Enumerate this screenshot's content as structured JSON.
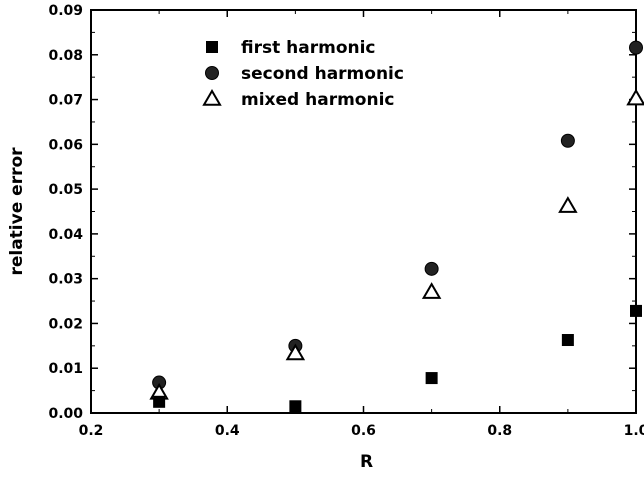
{
  "chart_data": {
    "type": "scatter",
    "title": "",
    "xlabel": "R",
    "ylabel": "relative error",
    "xlim": [
      0.2,
      1.0
    ],
    "ylim": [
      0.0,
      0.09
    ],
    "x_ticks": [
      0.2,
      0.4,
      0.6,
      0.8,
      1.0
    ],
    "x_tick_labels": [
      "0.2",
      "0.4",
      "0.6",
      "0.8",
      "1.0"
    ],
    "y_ticks": [
      0.0,
      0.01,
      0.02,
      0.03,
      0.04,
      0.05,
      0.06,
      0.07,
      0.08,
      0.09
    ],
    "y_tick_labels": [
      "0.00",
      "0.01",
      "0.02",
      "0.03",
      "0.04",
      "0.05",
      "0.06",
      "0.07",
      "0.08",
      "0.09"
    ],
    "grid": false,
    "legend_position": "top-left",
    "series": [
      {
        "name": "first harmonic",
        "marker": "filled-square",
        "color": "#000000",
        "x": [
          0.3,
          0.5,
          0.7,
          0.9,
          1.0
        ],
        "y": [
          0.0025,
          0.0015,
          0.0078,
          0.0163,
          0.0228
        ]
      },
      {
        "name": "second harmonic",
        "marker": "filled-circle",
        "color": "#000000",
        "x": [
          0.3,
          0.5,
          0.7,
          0.9,
          1.0
        ],
        "y": [
          0.0068,
          0.015,
          0.0322,
          0.0608,
          0.0816
        ]
      },
      {
        "name": "mixed harmonic",
        "marker": "open-triangle",
        "color": "#000000",
        "x": [
          0.3,
          0.5,
          0.7,
          0.9,
          1.0
        ],
        "y": [
          0.0045,
          0.0133,
          0.027,
          0.0462,
          0.0702
        ]
      }
    ]
  }
}
